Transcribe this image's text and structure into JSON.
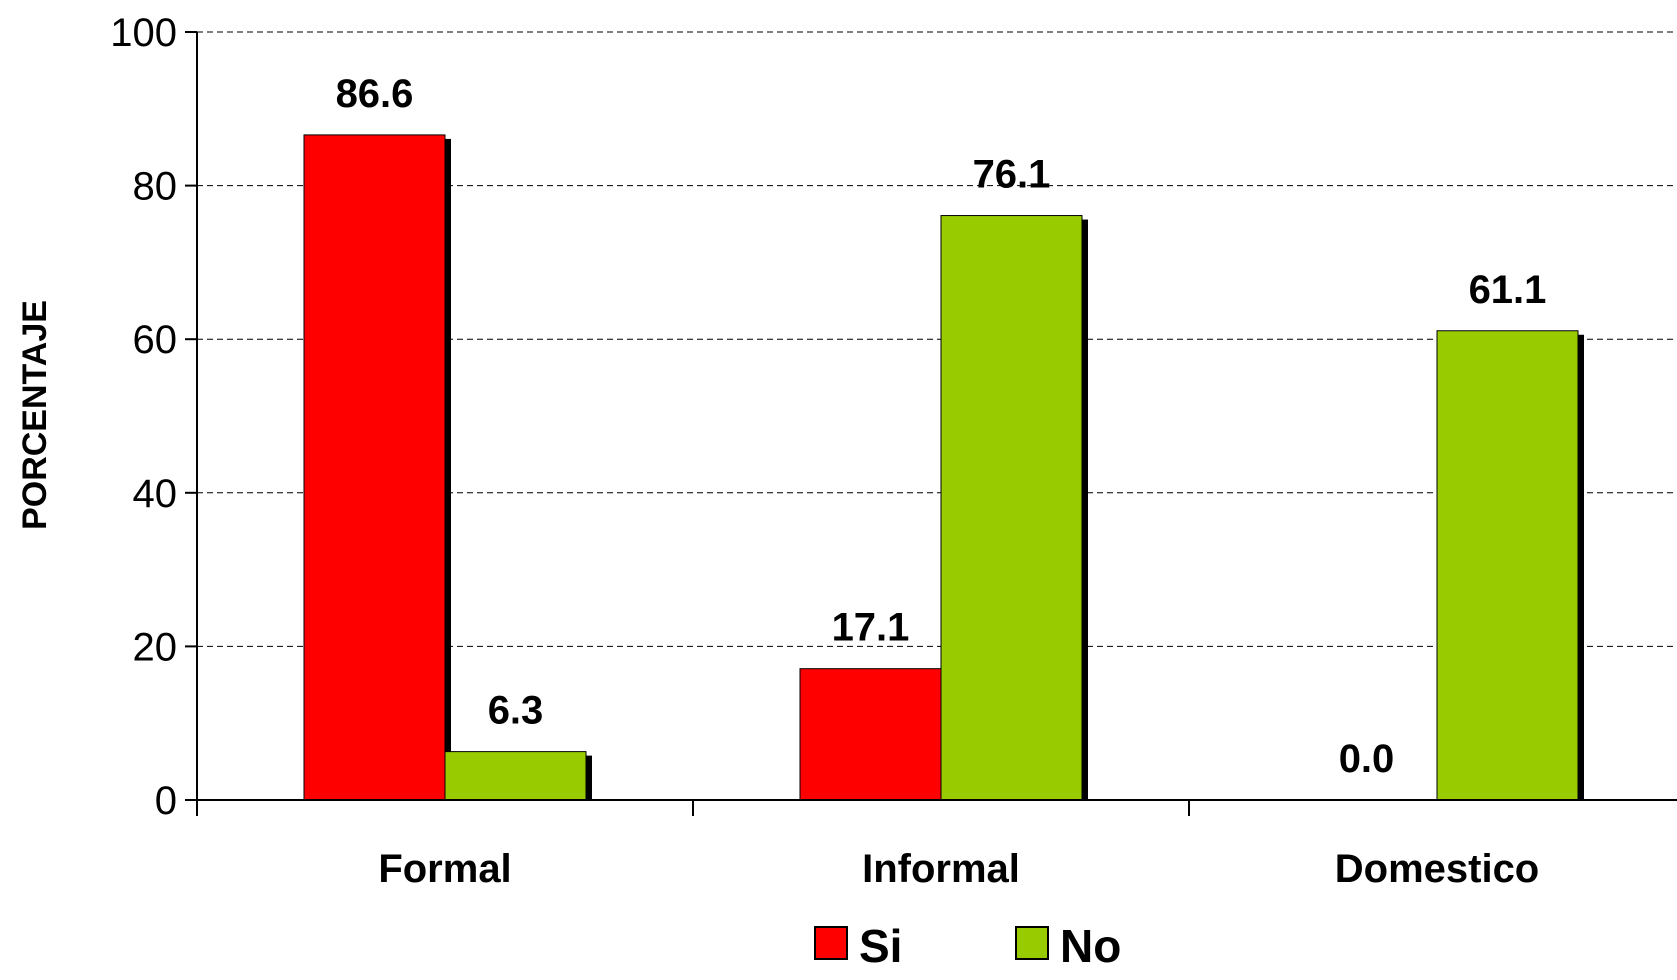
{
  "chart_data": {
    "type": "bar",
    "title": "",
    "xlabel": "",
    "ylabel": "PORCENTAJE",
    "categories": [
      "Formal",
      "Informal",
      "Domestico"
    ],
    "series": [
      {
        "name": "Si",
        "values": [
          86.6,
          17.1,
          0.0
        ],
        "labels": [
          "86.6",
          "17.1",
          "0.0"
        ],
        "color": "#ff0000"
      },
      {
        "name": "No",
        "values": [
          6.3,
          76.1,
          61.1
        ],
        "labels": [
          "6.3",
          "76.1",
          "61.1"
        ],
        "color": "#99cc00"
      }
    ],
    "ylim": [
      0,
      100
    ],
    "yticks": [
      0,
      20,
      40,
      60,
      80,
      100
    ],
    "ytick_labels": [
      "0",
      "20",
      "40",
      "60",
      "80",
      "100"
    ],
    "grid": true,
    "legend_position": "bottom"
  }
}
